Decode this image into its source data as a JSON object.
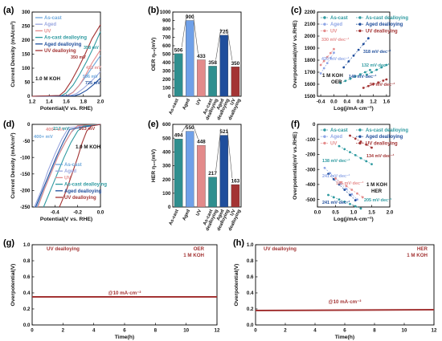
{
  "figure": {
    "panel_letters": [
      "(a)",
      "(b)",
      "(c)",
      "(d)",
      "(e)",
      "(f)",
      "(g)",
      "(h)"
    ]
  },
  "chart_data": [
    {
      "panel": "(a)",
      "type": "line",
      "xlabel": "Potential(V vs. RHE)",
      "ylabel": "Current Density (mA/cm²)",
      "xlim": [
        1.2,
        2.0
      ],
      "ylim": [
        0,
        300
      ],
      "xticks": [
        1.2,
        1.4,
        1.6,
        1.8,
        2.0
      ],
      "yticks": [
        0,
        50,
        100,
        150,
        200,
        250,
        300
      ],
      "inset_text": "1.0 M KOH",
      "legend_placement": "top-left",
      "series": [
        {
          "name": "As-cast",
          "color": "#6ea8dc",
          "x": [
            1.2,
            1.6,
            1.68,
            1.76,
            1.84,
            1.92,
            2.0
          ],
          "y": [
            0,
            2,
            15,
            42,
            75,
            110,
            145
          ]
        },
        {
          "name": "Aged",
          "color": "#9aa7e0",
          "x": [
            1.2,
            1.65,
            1.72,
            1.8,
            1.88,
            1.96,
            2.0
          ],
          "y": [
            0,
            2,
            10,
            28,
            50,
            74,
            88
          ]
        },
        {
          "name": "UV",
          "color": "#e58c8c",
          "x": [
            1.2,
            1.62,
            1.68,
            1.75,
            1.82,
            1.9,
            2.0
          ],
          "y": [
            0,
            3,
            14,
            38,
            72,
            118,
            165
          ]
        },
        {
          "name": "As-cast dealloying",
          "color": "#2e9aa0",
          "x": [
            1.2,
            1.54,
            1.6,
            1.68,
            1.76,
            1.84,
            1.92,
            2.0
          ],
          "y": [
            0,
            2,
            12,
            40,
            80,
            125,
            175,
            230
          ]
        },
        {
          "name": "Aged dealloying",
          "color": "#1f4e9c",
          "x": [
            1.2,
            1.7,
            1.76,
            1.84,
            1.92,
            2.0
          ],
          "y": [
            0,
            2,
            8,
            22,
            42,
            65
          ]
        },
        {
          "name": "UV dealloying",
          "color": "#a33434",
          "x": [
            1.2,
            1.52,
            1.58,
            1.66,
            1.74,
            1.82,
            1.9,
            2.0
          ],
          "y": [
            0,
            3,
            18,
            55,
            100,
            150,
            205,
            255
          ]
        }
      ],
      "annotations": [
        "358 mV",
        "350 mV",
        "433 mV",
        "506 mV",
        "725 mV"
      ]
    },
    {
      "panel": "(b)",
      "type": "bar",
      "ylabel": "OER η₁₀(mV)",
      "ylim": [
        0,
        1000
      ],
      "yticks": [
        0,
        100,
        200,
        300,
        400,
        500,
        600,
        700,
        800,
        900,
        1000
      ],
      "categories": [
        "As-cast",
        "Aged",
        "UV",
        "As-cast dealloying",
        "Aged dealloying",
        "UV dealloying"
      ],
      "values": [
        506,
        900,
        433,
        358,
        725,
        350
      ],
      "colors": [
        "#2f8f8f",
        "#6fa0e8",
        "#e38a8a",
        "#2f8f8f",
        "#1f4e9c",
        "#a33434"
      ]
    },
    {
      "panel": "(c)",
      "type": "scatter",
      "xlabel": "Log(j/mA·cm⁻²)",
      "ylabel": "Overpotential(mV vs.RHE)",
      "xlim": [
        -0.5,
        1.7
      ],
      "ylim": [
        1500,
        2200
      ],
      "xticks": [
        -0.4,
        0.0,
        0.4,
        0.8,
        1.2,
        1.6
      ],
      "yticks": [
        1500,
        1600,
        1700,
        1800,
        1900,
        2000,
        2100,
        2200
      ],
      "inset_text": [
        "1 M KOH",
        "OER"
      ],
      "legend_placement": "top",
      "series": [
        {
          "name": "As-cast",
          "color": "#2e9aa0",
          "x": [
            0.2,
            0.35,
            0.5,
            0.65,
            0.8,
            0.95,
            1.1
          ],
          "y": [
            1610,
            1628,
            1646,
            1664,
            1682,
            1700,
            1718
          ]
        },
        {
          "name": "As-cast dealloying",
          "color": "#2e9aa0",
          "x": [
            1.0,
            1.15,
            1.3,
            1.45,
            1.6
          ],
          "y": [
            1680,
            1700,
            1720,
            1740,
            1760
          ]
        },
        {
          "name": "Aged",
          "color": "#8fa6e6",
          "x": [
            -0.4,
            -0.3,
            -0.2,
            -0.1,
            0.0
          ],
          "y": [
            1690,
            1733,
            1776,
            1819,
            1862
          ]
        },
        {
          "name": "Aged dealloying",
          "color": "#1f4e9c",
          "x": [
            0.3,
            0.45,
            0.6,
            0.75,
            0.9,
            1.05
          ],
          "y": [
            1740,
            1790,
            1838,
            1886,
            1934,
            1982
          ]
        },
        {
          "name": "UV",
          "color": "#e58c8c",
          "x": [
            -0.4,
            -0.3,
            -0.2,
            -0.1,
            0.0
          ],
          "y": [
            1760,
            1793,
            1826,
            1859,
            1892
          ]
        },
        {
          "name": "UV dealloying",
          "color": "#a33434",
          "x": [
            0.9,
            1.05,
            1.2,
            1.35,
            1.5,
            1.6
          ],
          "y": [
            1570,
            1585,
            1600,
            1615,
            1630,
            1640
          ]
        }
      ],
      "annotations": [
        "330 mV·dec⁻¹",
        "420 mV·dec⁻¹",
        "318 mV·dec⁻¹",
        "132 mV·dec⁻¹",
        "140 mV·dec⁻¹",
        "97 mV·dec⁻¹"
      ]
    },
    {
      "panel": "(d)",
      "type": "line",
      "xlabel": "Potential(V vs. RHE)",
      "ylabel": "Current Density (mA/cm²)",
      "xlim": [
        -0.6,
        0.0
      ],
      "ylim": [
        -250,
        0
      ],
      "xticks": [
        -0.4,
        -0.2,
        0.0
      ],
      "yticks": [
        -250,
        -200,
        -150,
        -100,
        -50,
        0
      ],
      "inset_text": "1.0 M KOH",
      "legend_placement": "bottom-right",
      "series": [
        {
          "name": "As-cast",
          "color": "#6ea8dc",
          "x": [
            -0.56,
            -0.5,
            -0.44,
            -0.38,
            -0.32,
            -0.26,
            -0.2,
            0.0
          ],
          "y": [
            -250,
            -200,
            -150,
            -100,
            -60,
            -25,
            -5,
            0
          ]
        },
        {
          "name": "Aged",
          "color": "#9aa7e0",
          "x": [
            -0.58,
            -0.52,
            -0.46,
            -0.4,
            -0.34,
            -0.28,
            0.0
          ],
          "y": [
            -250,
            -200,
            -140,
            -90,
            -45,
            -10,
            0
          ]
        },
        {
          "name": "UV",
          "color": "#e58c8c",
          "x": [
            -0.55,
            -0.49,
            -0.43,
            -0.37,
            -0.31,
            -0.25,
            -0.2,
            0.0
          ],
          "y": [
            -250,
            -195,
            -145,
            -95,
            -55,
            -20,
            -4,
            0
          ]
        },
        {
          "name": "As-cast dealloying",
          "color": "#2e9aa0",
          "x": [
            -0.5,
            -0.44,
            -0.38,
            -0.32,
            -0.26,
            -0.2,
            -0.15,
            0.0
          ],
          "y": [
            -250,
            -200,
            -150,
            -100,
            -55,
            -20,
            -5,
            0
          ]
        },
        {
          "name": "Aged dealloying",
          "color": "#1f4e9c",
          "x": [
            -0.57,
            -0.51,
            -0.45,
            -0.39,
            -0.33,
            -0.27,
            0.0
          ],
          "y": [
            -250,
            -200,
            -150,
            -100,
            -55,
            -15,
            0
          ]
        },
        {
          "name": "UV dealloying",
          "color": "#a33434",
          "x": [
            -0.36,
            -0.3,
            -0.25,
            -0.2,
            -0.16,
            -0.12,
            -0.08,
            0.0
          ],
          "y": [
            -250,
            -200,
            -150,
            -100,
            -55,
            -20,
            -5,
            0
          ]
        }
      ],
      "annotations": [
        "400+ mV",
        "400+ mV",
        "217 mV",
        "163 mV"
      ]
    },
    {
      "panel": "(e)",
      "type": "bar",
      "ylabel": "η₁₀(mV)",
      "ylabel_prefix": "HER",
      "ylim": [
        0,
        600
      ],
      "yticks": [
        0,
        100,
        200,
        300,
        400,
        500,
        600
      ],
      "categories": [
        "As-cast",
        "Aged",
        "UV",
        "As-cast dealloying",
        "Aged dealloying",
        "UV dealloying"
      ],
      "values": [
        494,
        550,
        448,
        217,
        521,
        163
      ],
      "colors": [
        "#2f8f8f",
        "#6fa0e8",
        "#e38a8a",
        "#2f8f8f",
        "#1f4e9c",
        "#a33434"
      ]
    },
    {
      "panel": "(f)",
      "type": "scatter",
      "xlabel": "Log(j/mA·cm⁻²)",
      "ylabel": "Overpotential(mV vs.RHE)",
      "xlim": [
        0.0,
        2.0
      ],
      "ylim": [
        -550,
        0
      ],
      "xticks": [
        0.0,
        0.5,
        1.0,
        1.5,
        2.0
      ],
      "yticks": [
        -500,
        -400,
        -300,
        -200,
        -100,
        0
      ],
      "inset_text": [
        "1 M KOH",
        "HER"
      ],
      "legend_placement": "top",
      "series": [
        {
          "name": "As-cast",
          "color": "#2e9aa0",
          "x": [
            0.3,
            0.45,
            0.6,
            0.75,
            0.9,
            1.05,
            1.2
          ],
          "y": [
            -470,
            -485,
            -500,
            -515,
            -530,
            -545,
            -560
          ]
        },
        {
          "name": "As-cast dealloying",
          "color": "#2e9aa0",
          "x": [
            0.6,
            0.75,
            0.9,
            1.05,
            1.2,
            1.35,
            1.5
          ],
          "y": [
            -145,
            -165,
            -185,
            -205,
            -225,
            -245,
            -265
          ]
        },
        {
          "name": "Aged",
          "color": "#8fa6e6",
          "x": [
            0.2,
            0.35,
            0.5,
            0.65,
            0.8,
            0.95,
            1.1
          ],
          "y": [
            -290,
            -325,
            -360,
            -395,
            -430,
            -465,
            -500
          ]
        },
        {
          "name": "Aged dealloying",
          "color": "#1f4e9c",
          "x": [
            0.3,
            0.45,
            0.6,
            0.75,
            0.9,
            1.05
          ],
          "y": [
            -330,
            -365,
            -400,
            -435,
            -470,
            -505
          ]
        },
        {
          "name": "UV",
          "color": "#e58c8c",
          "x": [
            0.5,
            0.65,
            0.8,
            0.95,
            1.1,
            1.25
          ],
          "y": [
            -360,
            -385,
            -410,
            -435,
            -460,
            -485
          ]
        },
        {
          "name": "UV dealloying",
          "color": "#a33434",
          "x": [
            0.9,
            1.05,
            1.2,
            1.35,
            1.5
          ],
          "y": [
            -75,
            -95,
            -115,
            -135,
            -155
          ]
        }
      ],
      "annotations": [
        "134 mV·dec⁻¹",
        "138 mV·dec⁻¹",
        "241 mV·dec⁻¹",
        "165 mV·dec⁻¹",
        "205 mV·dec⁻¹",
        "241 mV·dec⁻¹"
      ]
    },
    {
      "panel": "(g)",
      "type": "line",
      "xlabel": "Time(h)",
      "ylabel": "Overpotential(V)",
      "xlim": [
        0,
        12
      ],
      "ylim": [
        0.0,
        1.0
      ],
      "xticks": [
        0,
        2,
        4,
        6,
        8,
        10,
        12
      ],
      "yticks": [
        0.0,
        0.2,
        0.4,
        0.6,
        0.8,
        1.0
      ],
      "legend_text": "UV dealloying",
      "condition": [
        "OER",
        "1 M KOH"
      ],
      "annotation": "@10 mA·cm⁻²",
      "series": [
        {
          "name": "UV dealloying",
          "color": "#a33434",
          "x": [
            0,
            12
          ],
          "y": [
            0.35,
            0.35
          ]
        }
      ]
    },
    {
      "panel": "(h)",
      "type": "line",
      "xlabel": "Time(h)",
      "ylabel": "Overpotential(V)",
      "xlim": [
        0,
        12
      ],
      "ylim": [
        0.0,
        1.0
      ],
      "xticks": [
        0,
        2,
        4,
        6,
        8,
        10,
        12
      ],
      "yticks": [
        0.0,
        0.2,
        0.4,
        0.6,
        0.8,
        1.0
      ],
      "legend_text": "UV dealloying",
      "condition": [
        "HER",
        "1 M KOH"
      ],
      "annotation": "@10 mA·cm⁻²",
      "series": [
        {
          "name": "UV dealloying",
          "color": "#a33434",
          "x": [
            0,
            12
          ],
          "y": [
            0.18,
            0.19
          ]
        }
      ]
    }
  ]
}
